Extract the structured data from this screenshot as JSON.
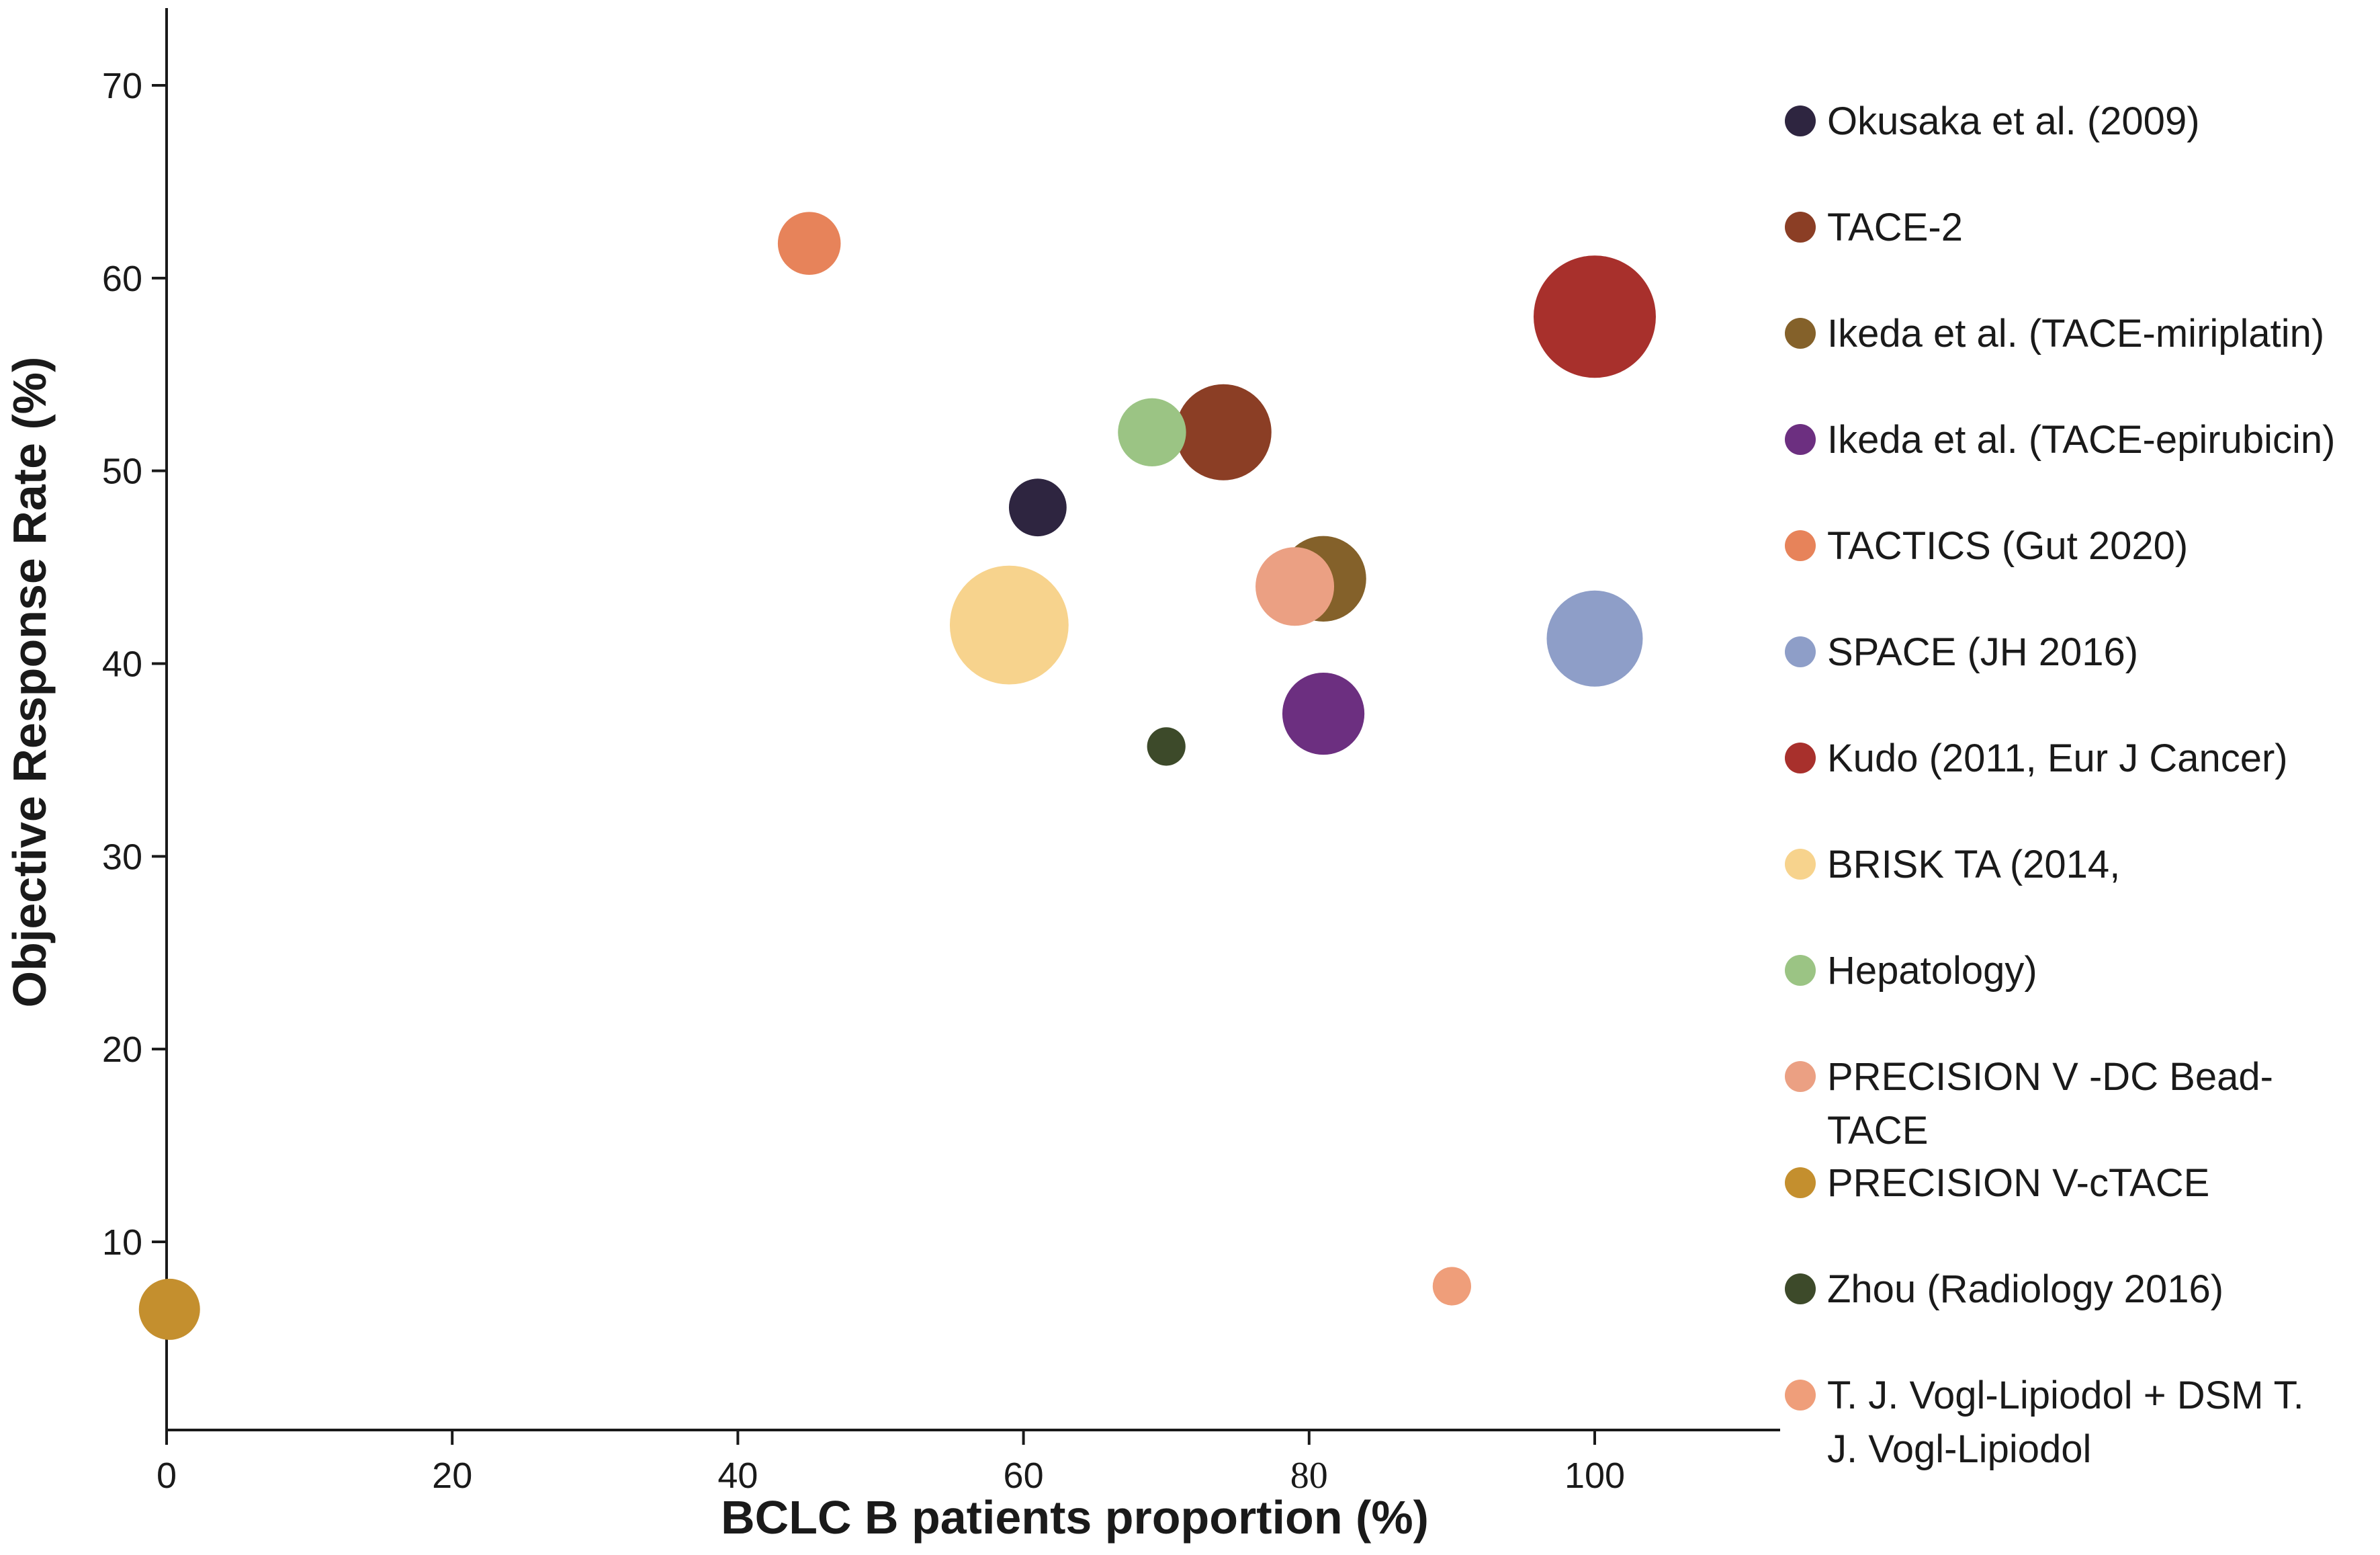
{
  "chart_data": {
    "type": "scatter",
    "variant": "bubble",
    "xlabel": "BCLC B patients proportion (%)",
    "ylabel": "Objective Response Rate (%)",
    "xlim": [
      0,
      113
    ],
    "ylim": [
      0,
      74
    ],
    "x_ticks": [
      {
        "value": 0,
        "label": "0"
      },
      {
        "value": 20,
        "label": "20"
      },
      {
        "value": 40,
        "label": "40"
      },
      {
        "value": 60,
        "label": "60"
      },
      {
        "value": 80,
        "label": "80"
      },
      {
        "value": 100,
        "label": "100"
      }
    ],
    "y_ticks": [
      {
        "value": 10,
        "label": "10"
      },
      {
        "value": 20,
        "label": "20"
      },
      {
        "value": 30,
        "label": "30"
      },
      {
        "value": 40,
        "label": "40"
      },
      {
        "value": 50,
        "label": "50"
      },
      {
        "value": 60,
        "label": "60"
      },
      {
        "value": 70,
        "label": "70"
      }
    ],
    "grid": false,
    "legend_position": "right",
    "series": [
      {
        "name": "Okusaka et al. (2009)",
        "color": "#2e2540",
        "points": [
          {
            "x": 61,
            "y": 48.1,
            "size": 3.3
          }
        ]
      },
      {
        "name": "TACE-2",
        "color": "#8b3e25",
        "points": [
          {
            "x": 74,
            "y": 52,
            "size": 5.5
          }
        ]
      },
      {
        "name": "Ikeda et al. (TACE-miriplatin)",
        "color": "#84612a",
        "points": [
          {
            "x": 81,
            "y": 44.4,
            "size": 4.9
          }
        ]
      },
      {
        "name": "Ikeda et al. (TACE-epirubicin)",
        "color": "#6c2f80",
        "points": [
          {
            "x": 81,
            "y": 37.4,
            "size": 4.7
          }
        ]
      },
      {
        "name": "TACTICS (Gut 2020)",
        "color": "#e7835a",
        "points": [
          {
            "x": 45,
            "y": 61.8,
            "size": 3.6
          }
        ]
      },
      {
        "name": "SPACE (JH 2016)",
        "color": "#8e9ec8",
        "points": [
          {
            "x": 100,
            "y": 41.3,
            "size": 5.5
          }
        ]
      },
      {
        "name": "Kudo (2011, Eur J Cancer)",
        "color": "#a8302c",
        "points": [
          {
            "x": 100,
            "y": 58,
            "size": 7.0
          }
        ]
      },
      {
        "name": "BRISK TA (2014,",
        "color": "#f7d38d",
        "points": [
          {
            "x": 59,
            "y": 42,
            "size": 6.8
          }
        ]
      },
      {
        "name": "Hepatology)",
        "color": "#9bc484",
        "points": [
          {
            "x": 69,
            "y": 52,
            "size": 3.9
          }
        ]
      },
      {
        "name": "PRECISION V -DC Bead-\nTACE",
        "color": "#eba083",
        "points": [
          {
            "x": 79,
            "y": 44,
            "size": 4.5
          }
        ]
      },
      {
        "name": "PRECISION V-cTACE",
        "color": "#c48f2e",
        "points": [
          {
            "x": 0.2,
            "y": 6.5,
            "size": 3.5
          }
        ]
      },
      {
        "name": "Zhou (Radiology 2016)",
        "color": "#3d4a2a",
        "points": [
          {
            "x": 70,
            "y": 35.7,
            "size": 2.2
          }
        ]
      },
      {
        "name": "T. J. Vogl-Lipiodol + DSM T.\nJ. Vogl-Lipiodol",
        "color": "#ef9e7a",
        "points": [
          {
            "x": 90,
            "y": 7.7,
            "size": 2.2
          }
        ]
      }
    ]
  }
}
